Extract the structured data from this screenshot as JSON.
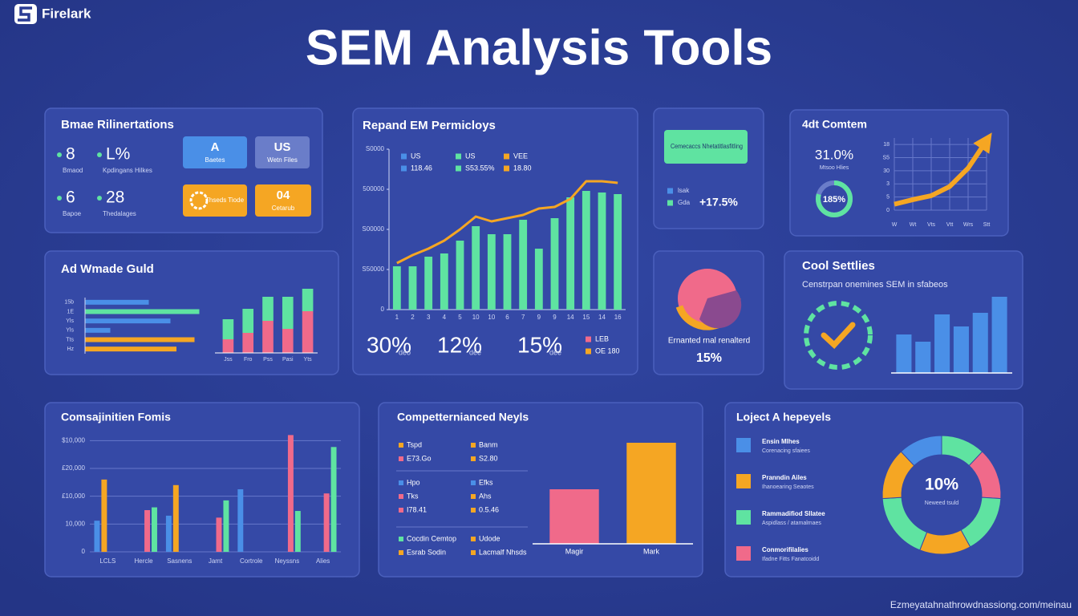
{
  "header": {
    "brand": "Firelark",
    "title": "SEM Analysis Tools",
    "footer": "Ezmeyatahnathrowdnassiong.com/meinau"
  },
  "panels": {
    "metrics": {
      "title": "Bmae Rilinertations",
      "stats": [
        {
          "value": 8,
          "label": "Bmaod"
        },
        {
          "value": "L%",
          "label": "Kpdingans Hilkes"
        },
        {
          "value": 6,
          "label": "Bapoe"
        },
        {
          "value": 28,
          "label": "Thedalages"
        }
      ],
      "tiles": [
        {
          "text": "A",
          "label": "Baetes",
          "color": "#4a8fe7"
        },
        {
          "text": "US",
          "label": "Wetn Files",
          "color": "#6a7dc9"
        },
        {
          "label": "Thseds Tiode",
          "color": "#f5a623"
        },
        {
          "text": "04",
          "label": "Cetarub",
          "color": "#f5a623"
        }
      ]
    },
    "signals": {
      "box": "Cemecaccs Nhetatitlasfitling",
      "rows": [
        {
          "label": "lsak",
          "color": "#4a8fe7"
        },
        {
          "label": "Gda",
          "value": "+17.5%",
          "color": "#5fe3a1"
        }
      ]
    },
    "ring": {
      "caption": "Ernanted rnal renalterd",
      "value": "15%"
    },
    "settings": {
      "title": "Cool Settlies",
      "subtitle": "Censtrpan onemines SEM in sfabeos"
    }
  },
  "chart_data": [
    {
      "type": "combo",
      "title": "Repand EM Permicloys",
      "categories": [
        "1",
        "2",
        "3",
        "4",
        "5",
        "10",
        "10",
        "6",
        "7",
        "9",
        "9",
        "14",
        "15",
        "14",
        "16"
      ],
      "series": [
        {
          "type": "bar",
          "color": "#5fe3a1",
          "values": [
            27,
            27,
            33,
            35,
            43,
            52,
            47,
            47,
            56,
            38,
            57,
            70,
            74,
            73,
            72
          ]
        },
        {
          "type": "line",
          "color": "#f5a623",
          "values": [
            29,
            34,
            38,
            43,
            50,
            58,
            55,
            57,
            59,
            63,
            64,
            69,
            80,
            80,
            79
          ]
        }
      ],
      "legend": [
        {
          "name": "US",
          "color": "#4a8fe7",
          "value": "118.46"
        },
        {
          "name": "US",
          "color": "#5fe3a1",
          "value": "S53.55%"
        },
        {
          "name": "VEE",
          "color": "#f5a623",
          "value": "18.80"
        }
      ],
      "ylim": [
        0,
        100
      ],
      "yticks": [
        0,
        {
          "value": 25,
          "label": "S50000"
        },
        {
          "value": 50,
          "label": "S00000"
        },
        {
          "value": 75,
          "label": "500000"
        },
        {
          "value": 100,
          "label": "S0000"
        }
      ],
      "stats": [
        {
          "value": "30%",
          "label": "deo"
        },
        {
          "value": "12%",
          "label": "dee"
        },
        {
          "value": "15%",
          "label": "dee"
        }
      ],
      "notes": [
        {
          "text": "LEB",
          "color": "#f06a8a"
        },
        {
          "text": "OE 180",
          "color": "#f5a623"
        }
      ]
    },
    {
      "type": "line",
      "title": "4dt Comtem",
      "stat": "31.0%",
      "stat_label": "Mtsoo Hlies",
      "ring": "185%",
      "categories": [
        "W",
        "Wt",
        "Vts",
        "Vtt",
        "Wrs",
        "Stt"
      ],
      "values": [
        0.45,
        0.8,
        1.1,
        1.8,
        3.2,
        5.3
      ],
      "color": "#f5a623",
      "ylim": [
        0,
        5.5
      ],
      "yticks": [
        0,
        {
          "value": 1,
          "label": "5"
        },
        {
          "value": 2,
          "label": "3"
        },
        {
          "value": 3,
          "label": "30"
        },
        {
          "value": 4,
          "label": "S5"
        },
        {
          "value": 5,
          "label": "18"
        }
      ],
      "grid": true
    },
    {
      "type": "barh",
      "title": "Ad Wmade Guld",
      "categories": [
        "15b",
        "1E",
        "Yls",
        "Yls",
        "Tts",
        "Hz"
      ],
      "values": [
        53,
        95,
        71,
        21,
        91,
        76
      ],
      "colors": [
        "#4a8fe7",
        "#5fe3a1",
        "#4a8fe7",
        "#4a8fe7",
        "#f5a623",
        "#f5a623"
      ],
      "xlim": [
        0,
        100
      ]
    },
    {
      "type": "stacked",
      "categories": [
        "Jss",
        "Fro",
        "Pss",
        "Pasi",
        "Yts"
      ],
      "series": [
        {
          "color": "#f06a8a",
          "values": [
            17,
            25,
            40,
            30,
            52
          ]
        },
        {
          "color": "#5fe3a1",
          "values": [
            25,
            30,
            30,
            40,
            28
          ]
        }
      ],
      "ylim": [
        0,
        100
      ]
    },
    {
      "type": "bar",
      "values": [
        48,
        39,
        73,
        58,
        75,
        95
      ],
      "color": "#4a8fe7",
      "ylim": [
        0,
        100
      ]
    },
    {
      "type": "grouped",
      "title": "Comsajinitien Fomis",
      "categories": [
        "LCLS",
        "Hercle",
        "Sasnens",
        "Jamt",
        "Cortrole",
        "Neyssns",
        "Alies"
      ],
      "series": [
        {
          "color": "#4a8fe7",
          "values": [
            11200,
            null,
            13000,
            null,
            22500,
            null,
            null
          ]
        },
        {
          "color": "#f5a623",
          "values": [
            26000,
            null,
            24000,
            null,
            null,
            null,
            null
          ]
        },
        {
          "color": "#f06a8a",
          "values": [
            null,
            15000,
            null,
            12300,
            null,
            42000,
            21000
          ]
        },
        {
          "color": "#5fe3a1",
          "values": [
            null,
            16000,
            null,
            18500,
            null,
            14700,
            37700
          ]
        }
      ],
      "ylim": [
        0,
        45000
      ],
      "yticks": [
        0,
        {
          "value": 10000,
          "label": "10,000"
        },
        {
          "value": 20000,
          "label": "£10,000"
        },
        {
          "value": 30000,
          "label": "£20,000"
        },
        {
          "value": 40000,
          "label": "$10,000"
        }
      ],
      "grid": true
    },
    {
      "type": "bar",
      "title": "Competternianced Neyls",
      "categories": [
        "Magir",
        "Mark"
      ],
      "values": [
        68,
        126
      ],
      "colors": [
        "#f06a8a",
        "#f5a623"
      ],
      "ylim": [
        0,
        140
      ],
      "items": [
        {
          "text": "Tspd",
          "color": "#f5a623"
        },
        {
          "text": "Banm",
          "color": "#f5a623"
        },
        {
          "text": "E73.Go",
          "color": "#f06a8a"
        },
        {
          "text": "S2.80",
          "color": "#f5a623"
        },
        {
          "text": "Hpo",
          "color": "#4a8fe7"
        },
        {
          "text": "Efks",
          "color": "#4a8fe7"
        },
        {
          "text": "Tks",
          "color": "#f06a8a"
        },
        {
          "text": "Ahs",
          "color": "#f5a623"
        },
        {
          "text": "I78.41",
          "color": "#f06a8a"
        },
        {
          "text": "0.5.46",
          "color": "#f5a623"
        },
        {
          "text": "Cocdin Cemtop",
          "color": "#5fe3a1"
        },
        {
          "text": "Udode",
          "color": "#f5a623"
        },
        {
          "text": "Esrab Sodin",
          "color": "#f5a623"
        },
        {
          "text": "Lacmalf Nhsds",
          "color": "#f5a623"
        }
      ]
    },
    {
      "type": "donut",
      "title": "Loject A hepeyels",
      "center": "10%",
      "center_label": "Neweed tsuld",
      "values": [
        12,
        14,
        16,
        14,
        18,
        14,
        12
      ],
      "colors": [
        "#5fe3a1",
        "#f06a8a",
        "#5fe3a1",
        "#f5a623",
        "#5fe3a1",
        "#f5a623",
        "#4a8fe7"
      ],
      "legend": [
        {
          "name": "Ensin Mlhes",
          "note": "Corenacing sfaiees",
          "color": "#4a8fe7"
        },
        {
          "name": "Pranndin Ailes",
          "note": "Ihanoearing Seaotes",
          "color": "#f5a623"
        },
        {
          "name": "Rammadifiod Sllatee",
          "note": "Aspidlass / atamalmaes",
          "color": "#5fe3a1"
        },
        {
          "name": "Conmorifilalies",
          "note": "Ifadne Fitts Fanatcoidd",
          "color": "#f06a8a"
        }
      ]
    }
  ]
}
